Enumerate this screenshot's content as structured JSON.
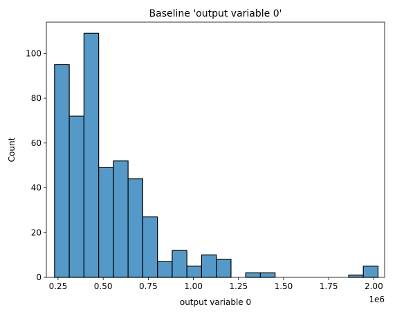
{
  "chart_data": {
    "type": "bar",
    "title": "Baseline 'output variable 0'",
    "xlabel": "output variable 0",
    "ylabel": "Count",
    "x_offset_label": "1e6",
    "xlim": [
      0.185,
      2.06
    ],
    "ylim": [
      0,
      114
    ],
    "x_ticks": [
      0.25,
      0.5,
      0.75,
      1.0,
      1.25,
      1.5,
      1.75,
      2.0
    ],
    "x_tick_labels": [
      "0.25",
      "0.50",
      "0.75",
      "1.00",
      "1.25",
      "1.50",
      "1.75",
      "2.00"
    ],
    "y_ticks": [
      0,
      20,
      40,
      60,
      80,
      100
    ],
    "y_tick_labels": [
      "0",
      "20",
      "40",
      "60",
      "80",
      "100"
    ],
    "bin_edges": [
      0.2305,
      0.312,
      0.3935,
      0.475,
      0.5565,
      0.638,
      0.7195,
      0.801,
      0.8825,
      0.964,
      1.0455,
      1.127,
      1.2085,
      1.29,
      1.3715,
      1.453,
      1.5345,
      1.616,
      1.6975,
      1.779,
      1.8605,
      1.942,
      2.0235
    ],
    "counts": [
      95,
      72,
      109,
      49,
      52,
      44,
      27,
      7,
      12,
      5,
      10,
      8,
      0,
      2,
      2,
      0,
      0,
      0,
      0,
      0,
      1,
      5
    ],
    "bar_color": "#5499c7",
    "edge_color": "#000000",
    "grid": false
  }
}
